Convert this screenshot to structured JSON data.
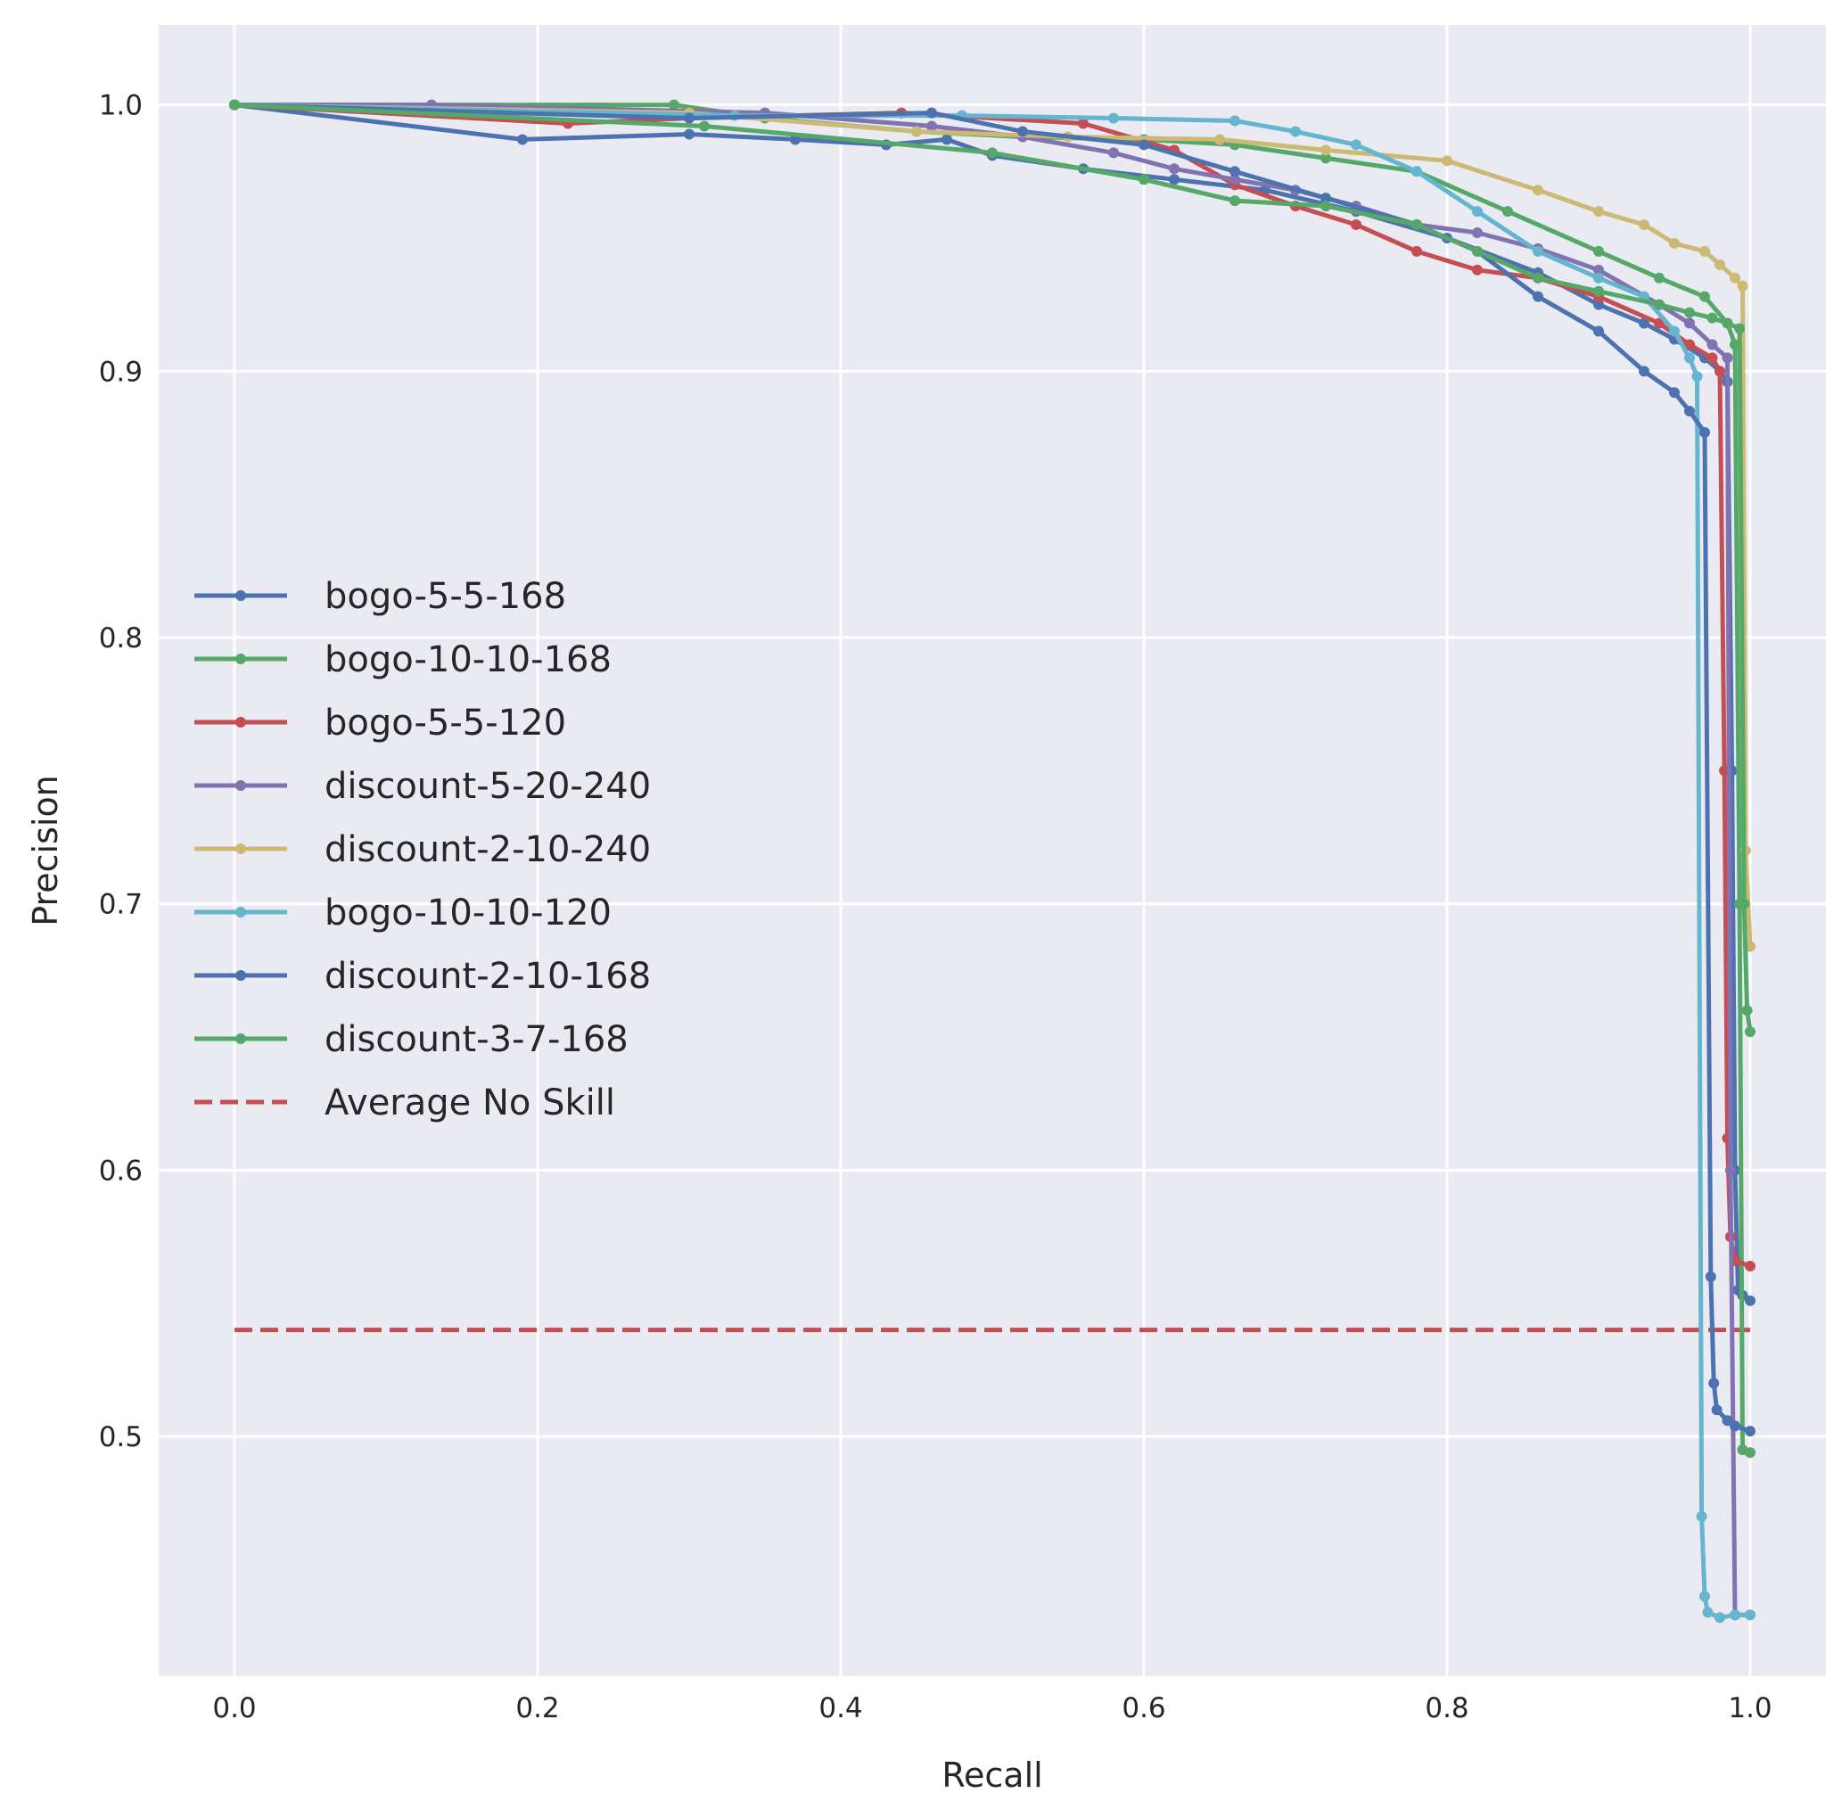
{
  "chart_data": {
    "type": "line",
    "title": "",
    "xlabel": "Recall",
    "ylabel": "Precision",
    "xlim": [
      -0.05,
      1.05
    ],
    "ylim": [
      0.41,
      1.03
    ],
    "x_ticks": [
      0.0,
      0.2,
      0.4,
      0.6,
      0.8,
      1.0
    ],
    "x_tick_labels": [
      "0.0",
      "0.2",
      "0.4",
      "0.6",
      "0.8",
      "1.0"
    ],
    "y_ticks": [
      0.5,
      0.6,
      0.7,
      0.8,
      0.9,
      1.0
    ],
    "y_tick_labels": [
      "0.5",
      "0.6",
      "0.7",
      "0.8",
      "0.9",
      "1.0"
    ],
    "grid": true,
    "legend_position": "center-left",
    "background": "#eaeaf2",
    "series": [
      {
        "name": "bogo-5-5-168",
        "color": "#4c72b0",
        "x": [
          0.0,
          0.19,
          0.3,
          0.37,
          0.43,
          0.47,
          0.5,
          0.56,
          0.62,
          0.68,
          0.74,
          0.8,
          0.86,
          0.9,
          0.93,
          0.95,
          0.97,
          0.98,
          0.985,
          0.988,
          0.99,
          0.992,
          0.995,
          1.0
        ],
        "y": [
          1.0,
          0.987,
          0.989,
          0.987,
          0.985,
          0.987,
          0.981,
          0.976,
          0.972,
          0.968,
          0.96,
          0.95,
          0.937,
          0.925,
          0.918,
          0.912,
          0.905,
          0.9,
          0.896,
          0.75,
          0.6,
          0.555,
          0.553,
          0.551
        ]
      },
      {
        "name": "bogo-10-10-168",
        "color": "#55a868",
        "x": [
          0.0,
          0.29,
          0.35,
          0.45,
          0.52,
          0.6,
          0.66,
          0.72,
          0.78,
          0.84,
          0.9,
          0.94,
          0.97,
          0.985,
          0.99,
          0.993,
          0.995,
          1.0
        ],
        "y": [
          1.0,
          1.0,
          0.995,
          0.99,
          0.988,
          0.987,
          0.985,
          0.98,
          0.975,
          0.96,
          0.945,
          0.935,
          0.928,
          0.918,
          0.91,
          0.7,
          0.495,
          0.494
        ]
      },
      {
        "name": "bogo-5-5-120",
        "color": "#c44e52",
        "x": [
          0.0,
          0.22,
          0.3,
          0.44,
          0.56,
          0.62,
          0.66,
          0.7,
          0.74,
          0.78,
          0.82,
          0.86,
          0.9,
          0.94,
          0.96,
          0.975,
          0.98,
          0.983,
          0.985,
          0.987,
          0.99,
          1.0
        ],
        "y": [
          1.0,
          0.993,
          0.995,
          0.997,
          0.993,
          0.983,
          0.97,
          0.962,
          0.955,
          0.945,
          0.938,
          0.935,
          0.928,
          0.918,
          0.91,
          0.905,
          0.9,
          0.75,
          0.612,
          0.575,
          0.566,
          0.564
        ]
      },
      {
        "name": "discount-5-20-240",
        "color": "#8172b2",
        "x": [
          0.0,
          0.13,
          0.35,
          0.46,
          0.52,
          0.58,
          0.62,
          0.66,
          0.7,
          0.74,
          0.78,
          0.82,
          0.86,
          0.9,
          0.94,
          0.96,
          0.975,
          0.985,
          0.987,
          0.99,
          1.0
        ],
        "y": [
          1.0,
          1.0,
          0.997,
          0.992,
          0.988,
          0.982,
          0.976,
          0.972,
          0.968,
          0.962,
          0.955,
          0.952,
          0.946,
          0.938,
          0.925,
          0.918,
          0.91,
          0.905,
          0.6,
          0.433,
          0.433
        ]
      },
      {
        "name": "discount-2-10-240",
        "color": "#ccb974",
        "x": [
          0.0,
          0.3,
          0.45,
          0.55,
          0.65,
          0.72,
          0.8,
          0.86,
          0.9,
          0.93,
          0.95,
          0.97,
          0.98,
          0.99,
          0.995,
          0.997,
          1.0
        ],
        "y": [
          1.0,
          0.997,
          0.99,
          0.988,
          0.987,
          0.983,
          0.979,
          0.968,
          0.96,
          0.955,
          0.948,
          0.945,
          0.94,
          0.935,
          0.932,
          0.72,
          0.684
        ]
      },
      {
        "name": "bogo-10-10-120",
        "color": "#64b5cd",
        "x": [
          0.0,
          0.33,
          0.48,
          0.58,
          0.66,
          0.7,
          0.74,
          0.78,
          0.82,
          0.86,
          0.9,
          0.93,
          0.95,
          0.96,
          0.965,
          0.968,
          0.97,
          0.972,
          0.98,
          0.99,
          1.0
        ],
        "y": [
          1.0,
          0.996,
          0.996,
          0.995,
          0.994,
          0.99,
          0.985,
          0.975,
          0.96,
          0.945,
          0.935,
          0.928,
          0.915,
          0.905,
          0.898,
          0.47,
          0.44,
          0.434,
          0.432,
          0.433,
          0.433
        ]
      },
      {
        "name": "discount-2-10-168",
        "color": "#4c72b0",
        "x": [
          0.0,
          0.3,
          0.46,
          0.52,
          0.6,
          0.66,
          0.72,
          0.78,
          0.82,
          0.86,
          0.9,
          0.93,
          0.95,
          0.96,
          0.97,
          0.974,
          0.976,
          0.978,
          0.985,
          0.99,
          1.0
        ],
        "y": [
          1.0,
          0.995,
          0.997,
          0.99,
          0.985,
          0.975,
          0.965,
          0.955,
          0.945,
          0.928,
          0.915,
          0.9,
          0.892,
          0.885,
          0.877,
          0.56,
          0.52,
          0.51,
          0.506,
          0.504,
          0.502
        ]
      },
      {
        "name": "discount-3-7-168",
        "color": "#55a868",
        "x": [
          0.0,
          0.31,
          0.5,
          0.6,
          0.66,
          0.72,
          0.78,
          0.82,
          0.86,
          0.9,
          0.94,
          0.96,
          0.975,
          0.985,
          0.993,
          0.996,
          0.998,
          1.0
        ],
        "y": [
          1.0,
          0.992,
          0.982,
          0.972,
          0.964,
          0.962,
          0.955,
          0.945,
          0.935,
          0.93,
          0.925,
          0.922,
          0.92,
          0.918,
          0.916,
          0.7,
          0.66,
          0.652
        ]
      }
    ],
    "reference_line": {
      "name": "Average No Skill",
      "color": "#c44e52",
      "style": "dashed",
      "x": [
        0.0,
        1.0
      ],
      "y": [
        0.54,
        0.54
      ]
    }
  }
}
